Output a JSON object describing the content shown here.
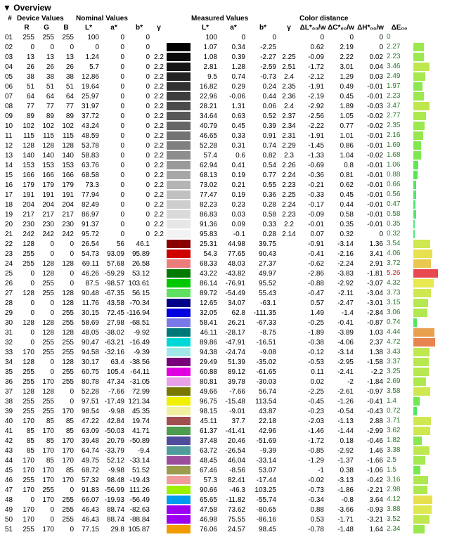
{
  "title": "Overview",
  "group_headers": {
    "device": "Device Values",
    "nominal": "Nominal Values",
    "measured": "Measured Values",
    "color_dist": "Color distance"
  },
  "sub_headers": [
    "#",
    "R",
    "G",
    "B",
    "L*",
    "a*",
    "b*",
    "γ",
    "",
    "L*",
    "a*",
    "b*",
    "γ",
    "ΔL*₀₀/w",
    "ΔC*₀₀/w",
    "ΔH*₀₀/w",
    "ΔE₀₀",
    ""
  ],
  "de_bar_scale": 6,
  "de_red_threshold": 5,
  "rows": [
    {
      "n": "01",
      "r": 255,
      "g": 255,
      "b": 255,
      "nL": 100,
      "na": 0,
      "nb": 0,
      "ng": "",
      "sw": "#ffffff",
      "mL": 100,
      "ma": 0,
      "mb": 0,
      "mg": "",
      "dL": 0,
      "dC": 0,
      "dH": 0,
      "dE": 0,
      "bar": "#ffffff"
    },
    {
      "n": "02",
      "r": 0,
      "g": 0,
      "b": 0,
      "nL": 0,
      "na": 0,
      "nb": 0,
      "ng": "",
      "sw": "#000000",
      "mL": 1.07,
      "ma": 0.34,
      "mb": -2.25,
      "mg": "",
      "dL": 0.62,
      "dC": 2.19,
      "dH": 0,
      "dE": 2.27,
      "bar": "#9be84f"
    },
    {
      "n": "03",
      "r": 13,
      "g": 13,
      "b": 13,
      "nL": 1.24,
      "na": 0,
      "nb": 0,
      "ng": 2.2,
      "sw": "#0a0a0a",
      "mL": 1.08,
      "ma": 0.39,
      "mb": -2.27,
      "mg": 2.25,
      "dL": -0.09,
      "dC": 2.22,
      "dH": 0.02,
      "dE": 2.23,
      "bar": "#9be84f"
    },
    {
      "n": "04",
      "r": 26,
      "g": 26,
      "b": 26,
      "nL": 5.7,
      "na": 0,
      "nb": 0,
      "ng": 2.2,
      "sw": "#151515",
      "mL": 2.81,
      "ma": 1.28,
      "mb": -2.59,
      "mg": 2.51,
      "dL": -1.72,
      "dC": 3.01,
      "dH": 0.04,
      "dE": 3.46,
      "bar": "#bfe84f"
    },
    {
      "n": "05",
      "r": 38,
      "g": 38,
      "b": 38,
      "nL": 12.86,
      "na": 0,
      "nb": 0,
      "ng": 2.2,
      "sw": "#222222",
      "mL": 9.5,
      "ma": 0.74,
      "mb": -0.73,
      "mg": 2.4,
      "dL": -2.12,
      "dC": 1.29,
      "dH": 0.03,
      "dE": 2.49,
      "bar": "#a5e84f"
    },
    {
      "n": "06",
      "r": 51,
      "g": 51,
      "b": 51,
      "nL": 19.64,
      "na": 0,
      "nb": 0,
      "ng": 2.2,
      "sw": "#303030",
      "mL": 16.82,
      "ma": 0.29,
      "mb": 0.24,
      "mg": 2.35,
      "dL": -1.91,
      "dC": 0.49,
      "dH": -0.01,
      "dE": 1.97,
      "bar": "#8be84f"
    },
    {
      "n": "07",
      "r": 64,
      "g": 64,
      "b": 64,
      "nL": 25.97,
      "na": 0,
      "nb": 0,
      "ng": 2.2,
      "sw": "#3d3d3d",
      "mL": 22.96,
      "ma": -0.06,
      "mb": 0.44,
      "mg": 2.36,
      "dL": -2.19,
      "dC": 0.45,
      "dH": -0.01,
      "dE": 2.23,
      "bar": "#9be84f"
    },
    {
      "n": "08",
      "r": 77,
      "g": 77,
      "b": 77,
      "nL": 31.97,
      "na": 0,
      "nb": 0,
      "ng": 2.2,
      "sw": "#4b4b4b",
      "mL": 28.21,
      "ma": 1.31,
      "mb": 0.06,
      "mg": 2.4,
      "dL": -2.92,
      "dC": 1.89,
      "dH": -0.03,
      "dE": 3.47,
      "bar": "#bfe84f"
    },
    {
      "n": "09",
      "r": 89,
      "g": 89,
      "b": 89,
      "nL": 37.72,
      "na": 0,
      "nb": 0,
      "ng": 2.2,
      "sw": "#585858",
      "mL": 34.64,
      "ma": 0.63,
      "mb": 0.52,
      "mg": 2.37,
      "dL": -2.56,
      "dC": 1.05,
      "dH": -0.02,
      "dE": 2.77,
      "bar": "#aee84f"
    },
    {
      "n": "10",
      "r": 102,
      "g": 102,
      "b": 102,
      "nL": 43.24,
      "na": 0,
      "nb": 0,
      "ng": 2.2,
      "sw": "#656565",
      "mL": 40.79,
      "ma": 0.45,
      "mb": 0.39,
      "mg": 2.34,
      "dL": -2.22,
      "dC": 0.77,
      "dH": -0.02,
      "dE": 2.35,
      "bar": "#9be84f"
    },
    {
      "n": "11",
      "r": 115,
      "g": 115,
      "b": 115,
      "nL": 48.59,
      "na": 0,
      "nb": 0,
      "ng": 2.2,
      "sw": "#737373",
      "mL": 46.65,
      "ma": 0.33,
      "mb": 0.91,
      "mg": 2.31,
      "dL": -1.91,
      "dC": 1.01,
      "dH": -0.01,
      "dE": 2.16,
      "bar": "#96e84f"
    },
    {
      "n": "12",
      "r": 128,
      "g": 128,
      "b": 128,
      "nL": 53.78,
      "na": 0,
      "nb": 0,
      "ng": 2.2,
      "sw": "#808080",
      "mL": 52.28,
      "ma": 0.31,
      "mb": 0.74,
      "mg": 2.29,
      "dL": -1.45,
      "dC": 0.86,
      "dH": -0.01,
      "dE": 1.69,
      "bar": "#80e84f"
    },
    {
      "n": "13",
      "r": 140,
      "g": 140,
      "b": 140,
      "nL": 58.83,
      "na": 0,
      "nb": 0,
      "ng": 2.2,
      "sw": "#8d8d8d",
      "mL": 57.4,
      "ma": 0.6,
      "mb": 0.82,
      "mg": 2.3,
      "dL": -1.33,
      "dC": 1.04,
      "dH": -0.02,
      "dE": 1.68,
      "bar": "#80e84f"
    },
    {
      "n": "14",
      "r": 153,
      "g": 153,
      "b": 153,
      "nL": 63.76,
      "na": 0,
      "nb": 0,
      "ng": 2.2,
      "sw": "#9a9a9a",
      "mL": 62.94,
      "ma": 0.41,
      "mb": 0.54,
      "mg": 2.26,
      "dL": -0.69,
      "dC": 0.8,
      "dH": -0.01,
      "dE": 1.06,
      "bar": "#60e84f"
    },
    {
      "n": "15",
      "r": 166,
      "g": 166,
      "b": 166,
      "nL": 68.58,
      "na": 0,
      "nb": 0,
      "ng": 2.2,
      "sw": "#a7a7a7",
      "mL": 68.13,
      "ma": 0.19,
      "mb": 0.77,
      "mg": 2.24,
      "dL": -0.36,
      "dC": 0.81,
      "dH": -0.01,
      "dE": 0.88,
      "bar": "#55e84f"
    },
    {
      "n": "16",
      "r": 179,
      "g": 179,
      "b": 179,
      "nL": 73.3,
      "na": 0,
      "nb": 0,
      "ng": 2.2,
      "sw": "#b4b4b4",
      "mL": 73.02,
      "ma": 0.21,
      "mb": 0.55,
      "mg": 2.23,
      "dL": -0.21,
      "dC": 0.62,
      "dH": -0.01,
      "dE": 0.66,
      "bar": "#4fe860"
    },
    {
      "n": "17",
      "r": 191,
      "g": 191,
      "b": 191,
      "nL": 77.94,
      "na": 0,
      "nb": 0,
      "ng": 2.2,
      "sw": "#c0c0c0",
      "mL": 77.47,
      "ma": 0.19,
      "mb": 0.36,
      "mg": 2.25,
      "dL": -0.33,
      "dC": 0.45,
      "dH": -0.01,
      "dE": 0.56,
      "bar": "#4fe868"
    },
    {
      "n": "18",
      "r": 204,
      "g": 204,
      "b": 204,
      "nL": 82.49,
      "na": 0,
      "nb": 0,
      "ng": 2.2,
      "sw": "#cdcdcd",
      "mL": 82.23,
      "ma": 0.23,
      "mb": 0.28,
      "mg": 2.24,
      "dL": -0.17,
      "dC": 0.44,
      "dH": -0.01,
      "dE": 0.47,
      "bar": "#4fe870"
    },
    {
      "n": "19",
      "r": 217,
      "g": 217,
      "b": 217,
      "nL": 86.97,
      "na": 0,
      "nb": 0,
      "ng": 2.2,
      "sw": "#dadada",
      "mL": 86.83,
      "ma": 0.03,
      "mb": 0.58,
      "mg": 2.23,
      "dL": -0.09,
      "dC": 0.58,
      "dH": -0.01,
      "dE": 0.58,
      "bar": "#4fe868"
    },
    {
      "n": "20",
      "r": 230,
      "g": 230,
      "b": 230,
      "nL": 91.37,
      "na": 0,
      "nb": 0,
      "ng": 2.2,
      "sw": "#e7e7e7",
      "mL": 91.36,
      "ma": 0.09,
      "mb": 0.33,
      "mg": 2.2,
      "dL": -0.01,
      "dC": 0.35,
      "dH": -0.01,
      "dE": 0.35,
      "bar": "#4fe880"
    },
    {
      "n": "21",
      "r": 242,
      "g": 242,
      "b": 242,
      "nL": 95.72,
      "na": 0,
      "nb": 0,
      "ng": 2.2,
      "sw": "#f3f3f3",
      "mL": 95.83,
      "ma": -0.1,
      "mb": 0.28,
      "mg": 2.14,
      "dL": 0.07,
      "dC": 0.32,
      "dH": 0,
      "dE": 0.32,
      "bar": "#4fe880"
    },
    {
      "n": "22",
      "r": 128,
      "g": 0,
      "b": 0,
      "nL": 26.54,
      "na": 56,
      "nb": 46.1,
      "ng": "",
      "sw": "#8b0000",
      "mL": 25.31,
      "ma": 44.98,
      "mb": 39.75,
      "mg": "",
      "dL": -0.91,
      "dC": -3.14,
      "dH": 1.36,
      "dE": 3.54,
      "bar": "#d0e84f"
    },
    {
      "n": "23",
      "r": 255,
      "g": 0,
      "b": 0,
      "nL": 54.73,
      "na": 93.09,
      "nb": 95.89,
      "ng": "",
      "sw": "#d10000",
      "mL": 54.3,
      "ma": 77.65,
      "mb": 90.43,
      "mg": "",
      "dL": -0.41,
      "dC": -2.16,
      "dH": 3.41,
      "dE": 4.06,
      "bar": "#e8e04f"
    },
    {
      "n": "24",
      "r": 255,
      "g": 128,
      "b": 128,
      "nL": 69.11,
      "na": 57.68,
      "nb": 26.58,
      "ng": "",
      "sw": "#ec7b7b",
      "mL": 68.33,
      "ma": 48.03,
      "mb": 27.37,
      "mg": "",
      "dL": -0.62,
      "dC": -2.24,
      "dH": 2.91,
      "dE": 3.72,
      "bar": "#e8c84f"
    },
    {
      "n": "25",
      "r": 0,
      "g": 128,
      "b": 0,
      "nL": 46.26,
      "na": -59.29,
      "nb": 53.12,
      "ng": "",
      "sw": "#007a00",
      "mL": 43.22,
      "ma": -43.82,
      "mb": 49.97,
      "mg": "",
      "dL": -2.86,
      "dC": -3.83,
      "dH": -1.81,
      "dE": 5.26,
      "bar": "#e8484f"
    },
    {
      "n": "26",
      "r": 0,
      "g": 255,
      "b": 0,
      "nL": 87.5,
      "na": -98.57,
      "nb": 103.61,
      "ng": "",
      "sw": "#00c800",
      "mL": 86.14,
      "ma": -76.91,
      "mb": 95.52,
      "mg": "",
      "dL": -0.88,
      "dC": -2.92,
      "dH": -3.07,
      "dE": 4.32,
      "bar": "#e8e84f"
    },
    {
      "n": "27",
      "r": 128,
      "g": 255,
      "b": 128,
      "nL": 90.48,
      "na": -67.35,
      "nb": 56.15,
      "ng": "",
      "sw": "#60e060",
      "mL": 89.72,
      "ma": -54.49,
      "mb": 55.43,
      "mg": "",
      "dL": -0.47,
      "dC": -2.11,
      "dH": -3.04,
      "dE": 3.73,
      "bar": "#d0e84f"
    },
    {
      "n": "28",
      "r": 0,
      "g": 0,
      "b": 128,
      "nL": 11.76,
      "na": 43.58,
      "nb": -70.34,
      "ng": "",
      "sw": "#000088",
      "mL": 12.65,
      "ma": 34.07,
      "mb": -63.1,
      "mg": "",
      "dL": 0.57,
      "dC": -2.47,
      "dH": -3.01,
      "dE": 3.15,
      "bar": "#b8e84f"
    },
    {
      "n": "29",
      "r": 0,
      "g": 0,
      "b": 255,
      "nL": 30.15,
      "na": 72.45,
      "nb": -116.94,
      "ng": "",
      "sw": "#0000e0",
      "mL": 32.05,
      "ma": 62.8,
      "mb": -111.35,
      "mg": "",
      "dL": 1.49,
      "dC": -1.4,
      "dH": -2.84,
      "dE": 3.06,
      "bar": "#b0e84f"
    },
    {
      "n": "30",
      "r": 128,
      "g": 128,
      "b": 255,
      "nL": 58.69,
      "na": 27.98,
      "nb": -68.51,
      "ng": "",
      "sw": "#7878e8",
      "mL": 58.41,
      "ma": 26.21,
      "mb": -67.33,
      "mg": "",
      "dL": -0.25,
      "dC": -0.41,
      "dH": -0.87,
      "dE": 0.74,
      "bar": "#4fe860"
    },
    {
      "n": "31",
      "r": 0,
      "g": 128,
      "b": 128,
      "nL": 48.05,
      "na": -38.02,
      "nb": -9.92,
      "ng": "",
      "sw": "#007878",
      "mL": 46.11,
      "ma": -28.17,
      "mb": -8.75,
      "mg": "",
      "dL": -1.89,
      "dC": -3.89,
      "dH": 1.03,
      "dE": 4.44,
      "bar": "#e8a04f"
    },
    {
      "n": "32",
      "r": 0,
      "g": 255,
      "b": 255,
      "nL": 90.47,
      "na": -63.21,
      "nb": -16.49,
      "ng": "",
      "sw": "#00d8d8",
      "mL": 89.86,
      "ma": -47.91,
      "mb": -16.51,
      "mg": "",
      "dL": -0.38,
      "dC": -4.06,
      "dH": 2.37,
      "dE": 4.72,
      "bar": "#e8844f"
    },
    {
      "n": "33",
      "r": 170,
      "g": 255,
      "b": 255,
      "nL": 94.58,
      "na": -32.16,
      "nb": -9.39,
      "ng": "",
      "sw": "#a0e8e8",
      "mL": 94.38,
      "ma": -24.74,
      "mb": -9.08,
      "mg": "",
      "dL": -0.12,
      "dC": -3.14,
      "dH": 1.38,
      "dE": 3.43,
      "bar": "#bfe84f"
    },
    {
      "n": "34",
      "r": 128,
      "g": 0,
      "b": 128,
      "nL": 30.17,
      "na": 63.4,
      "nb": -38.56,
      "ng": "",
      "sw": "#780078",
      "mL": 29.49,
      "ma": 51.39,
      "mb": -35.02,
      "mg": "",
      "dL": -0.53,
      "dC": -2.95,
      "dH": -1.58,
      "dE": 3.37,
      "bar": "#b8e84f"
    },
    {
      "n": "35",
      "r": 255,
      "g": 0,
      "b": 255,
      "nL": 60.75,
      "na": 105.4,
      "nb": -64.11,
      "ng": "",
      "sw": "#e000e0",
      "mL": 60.88,
      "ma": 89.12,
      "mb": -61.65,
      "mg": "",
      "dL": 0.11,
      "dC": -2.41,
      "dH": -2.2,
      "dE": 3.25,
      "bar": "#b8e84f"
    },
    {
      "n": "36",
      "r": 255,
      "g": 170,
      "b": 255,
      "nL": 80.78,
      "na": 47.34,
      "nb": -31.05,
      "ng": "",
      "sw": "#e8a0e8",
      "mL": 80.81,
      "ma": 39.78,
      "mb": -30.03,
      "mg": "",
      "dL": 0.02,
      "dC": -2,
      "dH": -1.84,
      "dE": 2.69,
      "bar": "#aee84f"
    },
    {
      "n": "37",
      "r": 128,
      "g": 128,
      "b": 0,
      "nL": 52.28,
      "na": -7.66,
      "nb": 72.99,
      "ng": "",
      "sw": "#787800",
      "mL": 49.66,
      "ma": -7.66,
      "mb": 56.74,
      "mg": "",
      "dL": -2.25,
      "dC": -2.61,
      "dH": -0.97,
      "dE": 3.58,
      "bar": "#d0e84f"
    },
    {
      "n": "38",
      "r": 255,
      "g": 255,
      "b": 0,
      "nL": 97.51,
      "na": -17.49,
      "nb": 121.34,
      "ng": "",
      "sw": "#f0f000",
      "mL": 96.75,
      "ma": -15.48,
      "mb": 113.54,
      "mg": "",
      "dL": -0.45,
      "dC": -1.26,
      "dH": -0.41,
      "dE": 1.4,
      "bar": "#70e84f"
    },
    {
      "n": "39",
      "r": 255,
      "g": 255,
      "b": 170,
      "nL": 98.54,
      "na": -9.98,
      "nb": 45.35,
      "ng": "",
      "sw": "#f0f0a0",
      "mL": 98.15,
      "ma": -9.01,
      "mb": 43.87,
      "mg": "",
      "dL": -0.23,
      "dC": -0.54,
      "dH": -0.43,
      "dE": 0.72,
      "bar": "#4fe865"
    },
    {
      "n": "40",
      "r": 170,
      "g": 85,
      "b": 85,
      "nL": 47.22,
      "na": 42.84,
      "nb": 19.74,
      "ng": "",
      "sw": "#a04e4e",
      "mL": 45.11,
      "ma": 37.7,
      "mb": 22.18,
      "mg": "",
      "dL": -2.03,
      "dC": -1.13,
      "dH": 2.88,
      "dE": 3.71,
      "bar": "#d0e84f"
    },
    {
      "n": "41",
      "r": 85,
      "g": 170,
      "b": 85,
      "nL": 63.09,
      "na": -50.03,
      "nb": 41.71,
      "ng": "",
      "sw": "#4e9c4e",
      "mL": 61.37,
      "ma": -41.41,
      "mb": 42.96,
      "mg": "",
      "dL": -1.46,
      "dC": -1.44,
      "dH": -2.99,
      "dE": 3.62,
      "bar": "#d0e84f"
    },
    {
      "n": "42",
      "r": 85,
      "g": 85,
      "b": 170,
      "nL": 39.48,
      "na": 20.79,
      "nb": -50.89,
      "ng": "",
      "sw": "#4e4e9c",
      "mL": 37.48,
      "ma": 20.46,
      "mb": -51.69,
      "mg": "",
      "dL": -1.72,
      "dC": 0.18,
      "dH": -0.46,
      "dE": 1.82,
      "bar": "#88e84f"
    },
    {
      "n": "43",
      "r": 85,
      "g": 170,
      "b": 170,
      "nL": 64.74,
      "na": -33.79,
      "nb": -9.4,
      "ng": "",
      "sw": "#4e9c9c",
      "mL": 63.72,
      "ma": -26.54,
      "mb": -9.39,
      "mg": "",
      "dL": -0.85,
      "dC": -2.92,
      "dH": 1.46,
      "dE": 3.38,
      "bar": "#bfe84f"
    },
    {
      "n": "44",
      "r": 170,
      "g": 85,
      "b": 170,
      "nL": 49.75,
      "na": 52.12,
      "nb": -33.14,
      "ng": "",
      "sw": "#9c4e9c",
      "mL": 48.45,
      "ma": 46.04,
      "mb": -33.14,
      "mg": "",
      "dL": -1.29,
      "dC": -1.37,
      "dH": -1.66,
      "dE": 2.5,
      "bar": "#a5e84f"
    },
    {
      "n": "45",
      "r": 170,
      "g": 170,
      "b": 85,
      "nL": 68.72,
      "na": -9.98,
      "nb": 51.52,
      "ng": "",
      "sw": "#9c9c4e",
      "mL": 67.46,
      "ma": -8.56,
      "mb": 53.07,
      "mg": "",
      "dL": -1,
      "dC": 0.38,
      "dH": -1.06,
      "dE": 1.5,
      "bar": "#78e84f"
    },
    {
      "n": "46",
      "r": 255,
      "g": 170,
      "b": 170,
      "nL": 57.32,
      "na": 98.48,
      "nb": -19.43,
      "ng": "",
      "sw": "#f09c9c",
      "mL": 57.3,
      "ma": 82.41,
      "mb": -17.44,
      "mg": "",
      "dL": -0.02,
      "dC": -3.13,
      "dH": -0.42,
      "dE": 3.16,
      "bar": "#b0e84f"
    },
    {
      "n": "47",
      "r": 170,
      "g": 255,
      "b": 0,
      "nL": 91.83,
      "na": -56.99,
      "nb": 111.26,
      "ng": "",
      "sw": "#9cf000",
      "mL": 90.66,
      "ma": -46.3,
      "mb": 103.25,
      "mg": "",
      "dL": -0.73,
      "dC": -1.86,
      "dH": -2.21,
      "dE": 2.98,
      "bar": "#aee84f"
    },
    {
      "n": "48",
      "r": 0,
      "g": 170,
      "b": 255,
      "nL": 66.07,
      "na": -19.93,
      "nb": -56.49,
      "ng": "",
      "sw": "#009cf0",
      "mL": 65.65,
      "ma": -11.82,
      "mb": -55.74,
      "mg": "",
      "dL": -0.34,
      "dC": -0.8,
      "dH": 3.64,
      "dE": 4.12,
      "bar": "#e8e04f"
    },
    {
      "n": "49",
      "r": 170,
      "g": 0,
      "b": 255,
      "nL": 46.43,
      "na": 88.74,
      "nb": -82.63,
      "ng": "",
      "sw": "#9c00f0",
      "mL": 47.58,
      "ma": 73.62,
      "mb": -80.65,
      "mg": "",
      "dL": 0.88,
      "dC": -3.66,
      "dH": -0.93,
      "dE": 3.88,
      "bar": "#e0e84f"
    },
    {
      "n": "50",
      "r": 170,
      "g": 0,
      "b": 255,
      "nL": 46.43,
      "na": 88.74,
      "nb": -88.84,
      "ng": "",
      "sw": "#9c00f0",
      "mL": 46.98,
      "ma": 75.55,
      "mb": -86.16,
      "mg": "",
      "dL": 0.53,
      "dC": -1.71,
      "dH": -3.21,
      "dE": 3.52,
      "bar": "#bfe84f"
    },
    {
      "n": "51",
      "r": 255,
      "g": 170,
      "b": 0,
      "nL": 77.15,
      "na": 29.8,
      "nb": 105.87,
      "ng": "",
      "sw": "#f09c00",
      "mL": 76.06,
      "ma": 24.57,
      "mb": 98.45,
      "mg": "",
      "dL": -0.78,
      "dC": -1.48,
      "dH": 1.64,
      "dE": 2.34,
      "bar": "#9be84f"
    }
  ]
}
